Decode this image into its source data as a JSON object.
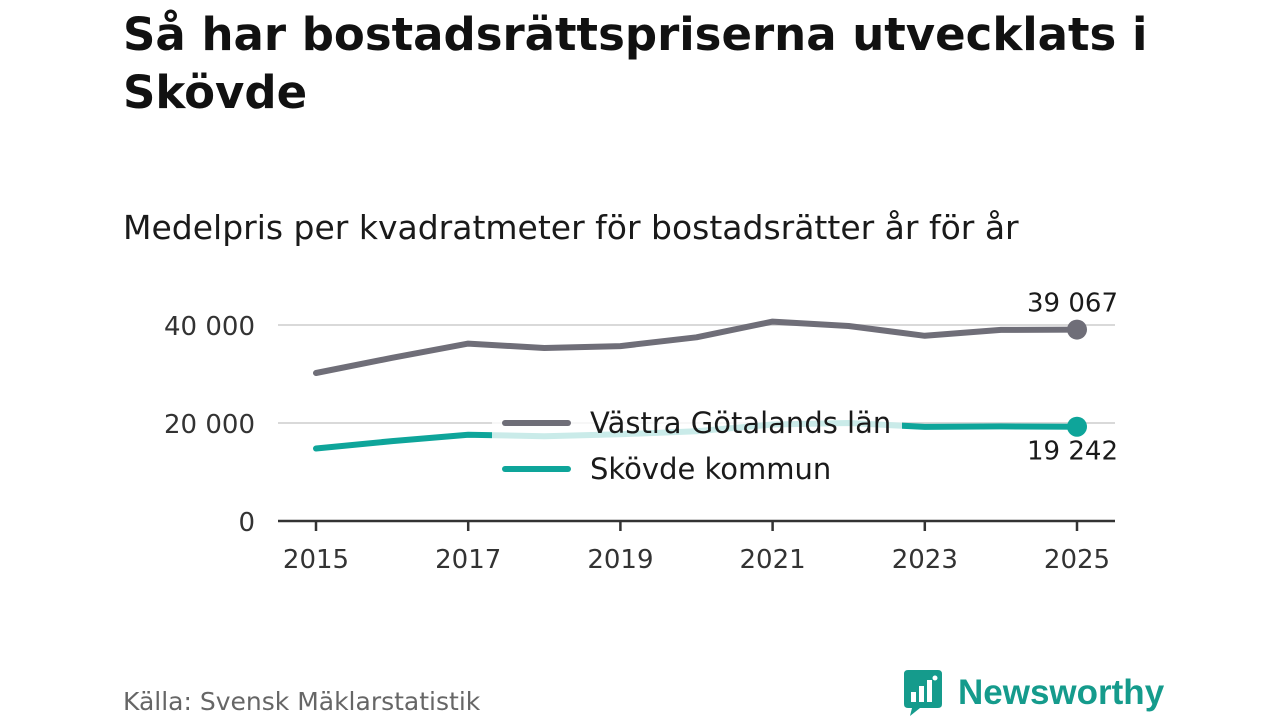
{
  "title": "Så har bostadsrättspriserna utvecklats i Skövde",
  "subtitle": "Medelpris per kvadratmeter för bostadsrätter år för år",
  "source": "Källa: Svensk Mäklarstatistik",
  "brand": {
    "name": "Newsworthy",
    "icon": "newsworthy-logo-icon"
  },
  "colors": {
    "region": "#6f6e78",
    "municipality": "#0ea59a",
    "grid": "#d9d9d9",
    "axis": "#333333"
  },
  "chart_data": {
    "type": "line",
    "x": [
      2015,
      2016,
      2017,
      2018,
      2019,
      2020,
      2021,
      2022,
      2023,
      2024,
      2025
    ],
    "x_ticks": [
      2015,
      2017,
      2019,
      2021,
      2023,
      2025
    ],
    "y_ticks": [
      0,
      20000,
      40000
    ],
    "y_tick_labels": [
      "0",
      "20 000",
      "40 000"
    ],
    "ylim": [
      0,
      42000
    ],
    "xlim": [
      2015,
      2025
    ],
    "series": [
      {
        "name": "Västra Götalands län",
        "color": "#6f6e78",
        "values": [
          30200,
          33300,
          36200,
          35300,
          35700,
          37500,
          40700,
          39800,
          37800,
          39000,
          39067
        ],
        "end_label": "39 067"
      },
      {
        "name": "Skövde kommun",
        "color": "#0ea59a",
        "values": [
          14800,
          16300,
          17600,
          17300,
          17700,
          18300,
          19700,
          20000,
          19200,
          19300,
          19242
        ],
        "end_label": "19 242"
      }
    ],
    "legend_position": "center"
  }
}
